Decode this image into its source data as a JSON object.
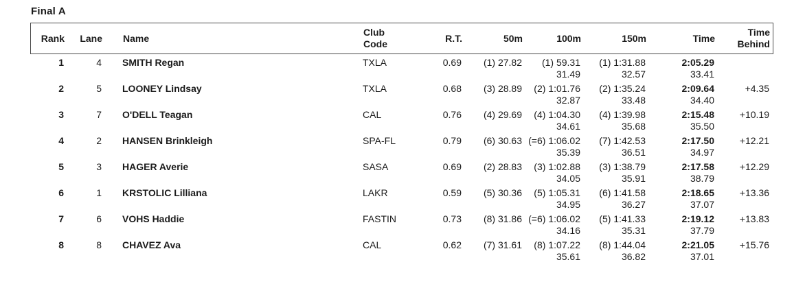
{
  "title": "Final A",
  "colors": {
    "text": "#1b1b1b",
    "border": "#4a4a4a"
  },
  "table": {
    "headers": {
      "rank": "Rank",
      "lane": "Lane",
      "name": "Name",
      "club_code": "Club Code",
      "rt": "R.T.",
      "d50": "50m",
      "d100": "100m",
      "d150": "150m",
      "time": "Time",
      "behind": "Time Behind"
    },
    "rows": [
      {
        "rank": "1",
        "lane": "4",
        "name": "SMITH Regan",
        "club": "TXLA",
        "rt": "0.69",
        "m50": "(1) 27.82",
        "m100": "(1) 59.31",
        "m100_split": "31.49",
        "m150": "(1) 1:31.88",
        "m150_split": "32.57",
        "time": "2:05.29",
        "time_split": "33.41",
        "behind": ""
      },
      {
        "rank": "2",
        "lane": "5",
        "name": "LOONEY Lindsay",
        "club": "TXLA",
        "rt": "0.68",
        "m50": "(3) 28.89",
        "m100": "(2) 1:01.76",
        "m100_split": "32.87",
        "m150": "(2) 1:35.24",
        "m150_split": "33.48",
        "time": "2:09.64",
        "time_split": "34.40",
        "behind": "+4.35"
      },
      {
        "rank": "3",
        "lane": "7",
        "name": "O'DELL Teagan",
        "club": "CAL",
        "rt": "0.76",
        "m50": "(4) 29.69",
        "m100": "(4) 1:04.30",
        "m100_split": "34.61",
        "m150": "(4) 1:39.98",
        "m150_split": "35.68",
        "time": "2:15.48",
        "time_split": "35.50",
        "behind": "+10.19"
      },
      {
        "rank": "4",
        "lane": "2",
        "name": "HANSEN Brinkleigh",
        "club": "SPA-FL",
        "rt": "0.79",
        "m50": "(6) 30.63",
        "m100": "(=6) 1:06.02",
        "m100_split": "35.39",
        "m150": "(7) 1:42.53",
        "m150_split": "36.51",
        "time": "2:17.50",
        "time_split": "34.97",
        "behind": "+12.21"
      },
      {
        "rank": "5",
        "lane": "3",
        "name": "HAGER Averie",
        "club": "SASA",
        "rt": "0.69",
        "m50": "(2) 28.83",
        "m100": "(3) 1:02.88",
        "m100_split": "34.05",
        "m150": "(3) 1:38.79",
        "m150_split": "35.91",
        "time": "2:17.58",
        "time_split": "38.79",
        "behind": "+12.29"
      },
      {
        "rank": "6",
        "lane": "1",
        "name": "KRSTOLIC Lilliana",
        "club": "LAKR",
        "rt": "0.59",
        "m50": "(5) 30.36",
        "m100": "(5) 1:05.31",
        "m100_split": "34.95",
        "m150": "(6) 1:41.58",
        "m150_split": "36.27",
        "time": "2:18.65",
        "time_split": "37.07",
        "behind": "+13.36"
      },
      {
        "rank": "7",
        "lane": "6",
        "name": "VOHS Haddie",
        "club": "FASTIN",
        "rt": "0.73",
        "m50": "(8) 31.86",
        "m100": "(=6) 1:06.02",
        "m100_split": "34.16",
        "m150": "(5) 1:41.33",
        "m150_split": "35.31",
        "time": "2:19.12",
        "time_split": "37.79",
        "behind": "+13.83"
      },
      {
        "rank": "8",
        "lane": "8",
        "name": "CHAVEZ Ava",
        "club": "CAL",
        "rt": "0.62",
        "m50": "(7) 31.61",
        "m100": "(8) 1:07.22",
        "m100_split": "35.61",
        "m150": "(8) 1:44.04",
        "m150_split": "36.82",
        "time": "2:21.05",
        "time_split": "37.01",
        "behind": "+15.76"
      }
    ]
  }
}
